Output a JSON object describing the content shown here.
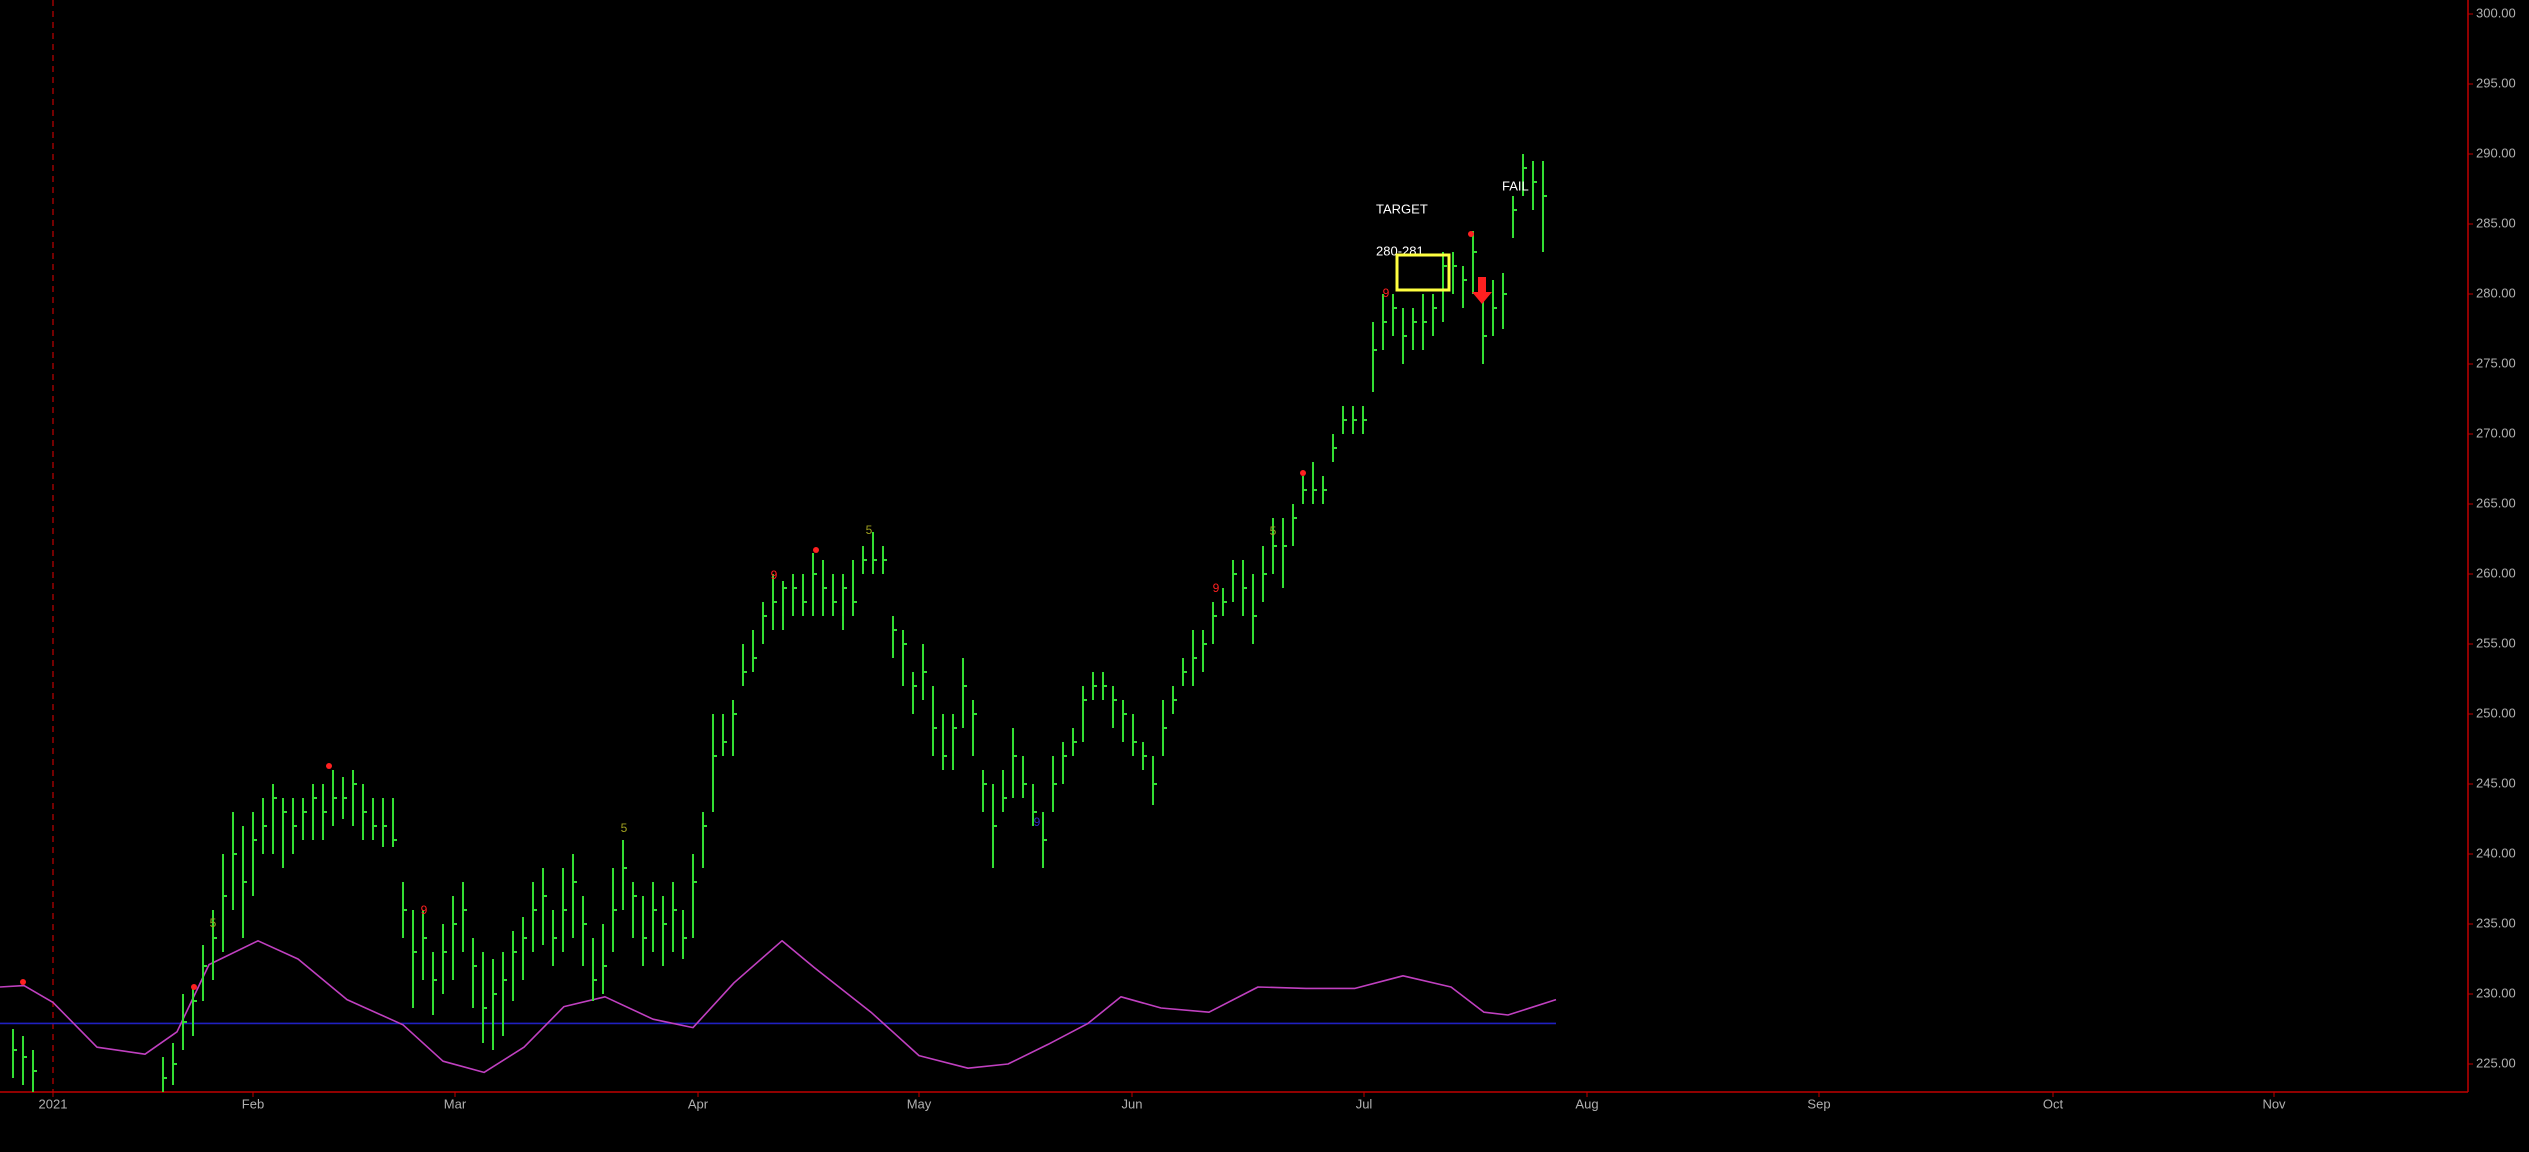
{
  "chart_data": {
    "type": "ohlc",
    "color": "#33dd33",
    "x": [
      -4,
      -3,
      -2,
      11,
      12,
      13,
      14,
      15,
      16,
      17,
      18,
      19,
      20,
      21,
      22,
      23,
      24,
      25,
      26,
      27,
      28,
      29,
      30,
      31,
      32,
      33,
      34,
      35,
      36,
      37,
      38,
      39,
      40,
      41,
      42,
      43,
      44,
      45,
      46,
      47,
      48,
      49,
      50,
      51,
      52,
      53,
      54,
      55,
      56,
      57,
      58,
      59,
      60,
      61,
      62,
      63,
      64,
      65,
      66,
      67,
      68,
      69,
      70,
      71,
      72,
      73,
      74,
      75,
      76,
      77,
      78,
      79,
      80,
      81,
      82,
      83,
      84,
      85,
      86,
      87,
      88,
      89,
      90,
      91,
      92,
      93,
      94,
      95,
      96,
      97,
      98,
      99,
      100,
      101,
      102,
      103,
      104,
      105,
      106,
      107,
      108,
      109,
      110,
      111,
      112,
      113,
      114,
      115,
      116,
      117,
      118,
      119,
      120,
      121,
      122,
      123,
      124,
      125,
      126,
      127,
      128,
      129,
      130,
      131,
      132,
      133,
      134,
      135,
      136,
      137,
      138,
      139,
      140,
      141,
      142,
      143,
      144,
      145,
      146,
      147,
      148,
      149
    ],
    "high": [
      227.5,
      227,
      226,
      225.5,
      226.5,
      230,
      230.5,
      233.5,
      236,
      240,
      243,
      242,
      243,
      244,
      245,
      244,
      244,
      244,
      245,
      245,
      246,
      245.5,
      246,
      245,
      244,
      244,
      244,
      238,
      236,
      236,
      233,
      235,
      237,
      238,
      234,
      233,
      232.5,
      233,
      234.5,
      235.5,
      238,
      239,
      236,
      239,
      240,
      237,
      234,
      235,
      239,
      241,
      238,
      237,
      238,
      237,
      238,
      236,
      240,
      243,
      250,
      250,
      251,
      255,
      256,
      258,
      260,
      259.5,
      260,
      260,
      261.5,
      261,
      260,
      260,
      261,
      262,
      263,
      262,
      257,
      256,
      253,
      255,
      252,
      250,
      250,
      254,
      251,
      246,
      245,
      246,
      249,
      247,
      245,
      243,
      247,
      248,
      249,
      252,
      253,
      253,
      252,
      251,
      250,
      248,
      247,
      251,
      252,
      254,
      256,
      256,
      258,
      259,
      261,
      261,
      260,
      262,
      264,
      264,
      265,
      267,
      268,
      267,
      270,
      272,
      272,
      272,
      278,
      280,
      280,
      279,
      279,
      280,
      280,
      283,
      283,
      282,
      284.5,
      281,
      281,
      281.5,
      287,
      290,
      289.5,
      289.5
    ],
    "low": [
      224,
      223.5,
      223,
      223,
      223.5,
      226,
      227,
      229.5,
      231,
      233,
      236,
      234,
      237,
      240,
      240,
      239,
      240,
      241,
      241,
      241,
      242,
      242.5,
      242,
      241,
      241,
      240.5,
      240.5,
      234,
      229,
      231,
      228.5,
      230,
      231,
      233,
      229,
      226.5,
      226,
      227,
      229.5,
      231,
      233,
      233.5,
      232,
      233,
      234,
      232,
      229.5,
      230,
      233,
      236,
      234,
      232,
      233,
      232,
      233,
      232.5,
      234,
      239,
      243,
      247,
      247,
      252,
      253,
      255,
      256,
      256,
      257,
      257,
      257,
      257,
      257,
      256,
      257,
      260,
      260,
      260,
      254,
      252,
      250,
      251,
      247,
      246,
      246,
      249,
      247,
      243,
      239,
      243,
      244,
      244,
      242,
      239,
      243,
      245,
      247,
      248,
      251,
      251,
      249,
      248,
      247,
      246,
      243.5,
      247,
      250,
      252,
      252,
      253,
      255,
      257,
      258,
      257,
      255,
      258,
      260,
      259,
      262,
      265,
      265,
      265,
      268,
      270,
      270,
      270,
      273,
      276,
      277,
      275,
      276,
      276,
      277,
      278,
      280,
      279,
      280,
      275,
      277,
      277.5,
      284,
      287,
      286,
      283
    ],
    "close": [
      226,
      225.5,
      224.5,
      224,
      225,
      228,
      229.5,
      232,
      234,
      237,
      240,
      238,
      241,
      242,
      244,
      243,
      242,
      243,
      244,
      243,
      244,
      244,
      245,
      243,
      242,
      242,
      241,
      236,
      233,
      234,
      231,
      233,
      235,
      236,
      232,
      229,
      230,
      231,
      233,
      234,
      236,
      237,
      234,
      236,
      238,
      235,
      231,
      232,
      236,
      239,
      237,
      234,
      236,
      235,
      236,
      234,
      238,
      242,
      247,
      248,
      250,
      253,
      254,
      257,
      258,
      259,
      259,
      258,
      260,
      259,
      258,
      259,
      258,
      261,
      261,
      261,
      256,
      255,
      252,
      253,
      249,
      247,
      249,
      252,
      250,
      245,
      242,
      244,
      247,
      245,
      243,
      241,
      245,
      247,
      248,
      251,
      252,
      252,
      251,
      250,
      248,
      247,
      245,
      249,
      251,
      253,
      254,
      255,
      257,
      258,
      260,
      259,
      257,
      260,
      262,
      262,
      264,
      266,
      266,
      266,
      269,
      271,
      271,
      271,
      276,
      278,
      279,
      277,
      278,
      278,
      279,
      282,
      282,
      281,
      283,
      277,
      279,
      280,
      286,
      289,
      288,
      287
    ],
    "oscillator": {
      "color": "#c040c0",
      "x": [
        -5.3,
        -2.9,
        0,
        4.4,
        9.2,
        12.4,
        15.6,
        20.5,
        24.5,
        29.4,
        35,
        39,
        43.1,
        47.1,
        51.1,
        55.2,
        60,
        64,
        68.1,
        72.9,
        76.1,
        81.8,
        86.6,
        91.5,
        95.5,
        99.5,
        103.5,
        106.8,
        110.8,
        115.6,
        120.5,
        125.3,
        130.2,
        135,
        139.8,
        143.1,
        145.5,
        150.3
      ],
      "values": [
        230.5,
        230.6,
        229.4,
        226.2,
        225.7,
        227.3,
        232.1,
        233.8,
        232.5,
        229.6,
        227.8,
        225.2,
        224.4,
        226.2,
        229.1,
        229.8,
        228.2,
        227.6,
        230.8,
        233.8,
        231.9,
        228.7,
        225.6,
        224.7,
        225.0,
        226.4,
        227.9,
        229.8,
        229.0,
        228.7,
        230.5,
        230.4,
        230.4,
        231.3,
        230.5,
        228.7,
        228.5,
        229.6
      ]
    },
    "baseline": {
      "value": 227.9,
      "color": "#2020c0"
    },
    "xlim": [
      -5.3,
      241.5
    ],
    "ylim": [
      223,
      301
    ],
    "yticks": [
      {
        "value": 225,
        "label": "225.00"
      },
      {
        "value": 230,
        "label": "230.00"
      },
      {
        "value": 235,
        "label": "235.00"
      },
      {
        "value": 240,
        "label": "240.00"
      },
      {
        "value": 245,
        "label": "245.00"
      },
      {
        "value": 250,
        "label": "250.00"
      },
      {
        "value": 255,
        "label": "255.00"
      },
      {
        "value": 260,
        "label": "260.00"
      },
      {
        "value": 265,
        "label": "265.00"
      },
      {
        "value": 270,
        "label": "270.00"
      },
      {
        "value": 275,
        "label": "275.00"
      },
      {
        "value": 280,
        "label": "280.00"
      },
      {
        "value": 285,
        "label": "285.00"
      },
      {
        "value": 290,
        "label": "290.00"
      },
      {
        "value": 295,
        "label": "295.00"
      },
      {
        "value": 300,
        "label": "300.00"
      }
    ],
    "xticks": [
      {
        "value": 0,
        "label": "2021"
      },
      {
        "value": 20,
        "label": "Feb"
      },
      {
        "value": 40.2,
        "label": "Mar"
      },
      {
        "value": 64.5,
        "label": "Apr"
      },
      {
        "value": 86.6,
        "label": "May"
      },
      {
        "value": 107.9,
        "label": "Jun"
      },
      {
        "value": 131.1,
        "label": "Jul"
      },
      {
        "value": 153.4,
        "label": "Aug"
      },
      {
        "value": 176.6,
        "label": "Sep"
      },
      {
        "value": 200,
        "label": "Oct"
      },
      {
        "value": 222.1,
        "label": "Nov"
      }
    ],
    "annotations": {
      "target_label": "TARGET",
      "target_range": "280-281",
      "fail_label": "FAIL",
      "signals": [
        "5",
        "9",
        "5",
        "9",
        "5",
        "9",
        "9",
        "5",
        "9"
      ]
    }
  }
}
